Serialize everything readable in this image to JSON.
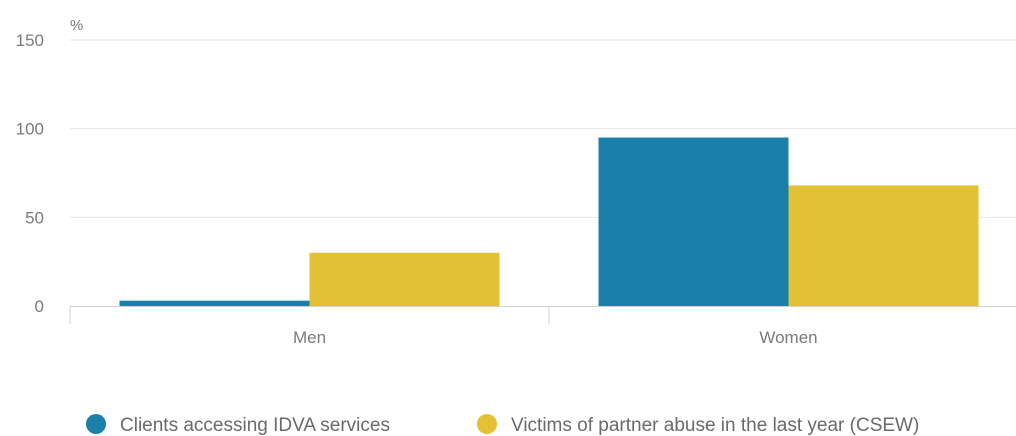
{
  "chart_data": {
    "type": "bar",
    "unit_label": "%",
    "categories": [
      "Men",
      "Women"
    ],
    "series": [
      {
        "name": "Clients accessing IDVA services",
        "values": [
          3,
          95
        ],
        "color": "#1b80a9"
      },
      {
        "name": "Victims of partner abuse in the last year (CSEW)",
        "values": [
          30,
          68
        ],
        "color": "#e3c134"
      }
    ],
    "ylim": [
      0,
      150
    ],
    "yticks": [
      0,
      50,
      100,
      150
    ],
    "grid": true,
    "legend_position": "bottom-left"
  }
}
